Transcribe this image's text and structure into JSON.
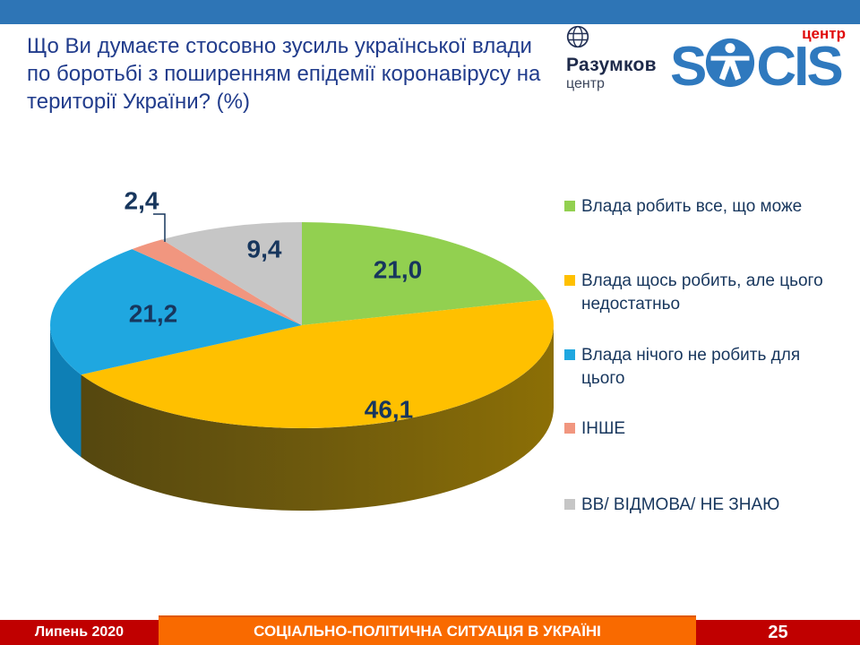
{
  "header": {
    "title_lines": [
      "Що Ви думаєте стосовно зусиль української влади",
      "по боротьбі з поширенням епідемії коронавірусу на",
      "території України? (%)"
    ]
  },
  "logos": {
    "razumkov": {
      "name": "Разумков",
      "sub": "центр"
    },
    "socis": {
      "letters_pre": "S",
      "letters_post": "CIS",
      "sub": "центр"
    }
  },
  "chart_data": {
    "type": "pie",
    "is_3d": true,
    "unit": "%",
    "start_angle_deg": 0,
    "direction": "clockwise",
    "legend_position": "right",
    "slices": [
      {
        "label": "Влада робить все, що може",
        "value": 21.0,
        "display": "21,0",
        "color": "#92D050"
      },
      {
        "label": "Влада щось робить, але цього недостатньо",
        "value": 46.1,
        "display": "46,1",
        "color": "#FFC000"
      },
      {
        "label": "Влада нічого не робить для цього",
        "value": 21.2,
        "display": "21,2",
        "color": "#1FA7E0"
      },
      {
        "label": "ІНШЕ",
        "value": 2.4,
        "display": "2,4",
        "color": "#F1967F"
      },
      {
        "label": "ВВ/ ВІДМОВА/ НЕ ЗНАЮ",
        "value": 9.4,
        "display": "9,4",
        "color": "#C6C6C6"
      }
    ],
    "label_color": "#17365D"
  },
  "footer": {
    "date": "Липень 2020",
    "title": "СОЦІАЛЬНО-ПОЛІТИЧНА СИТУАЦІЯ В УКРАЇНІ",
    "page": "25"
  }
}
